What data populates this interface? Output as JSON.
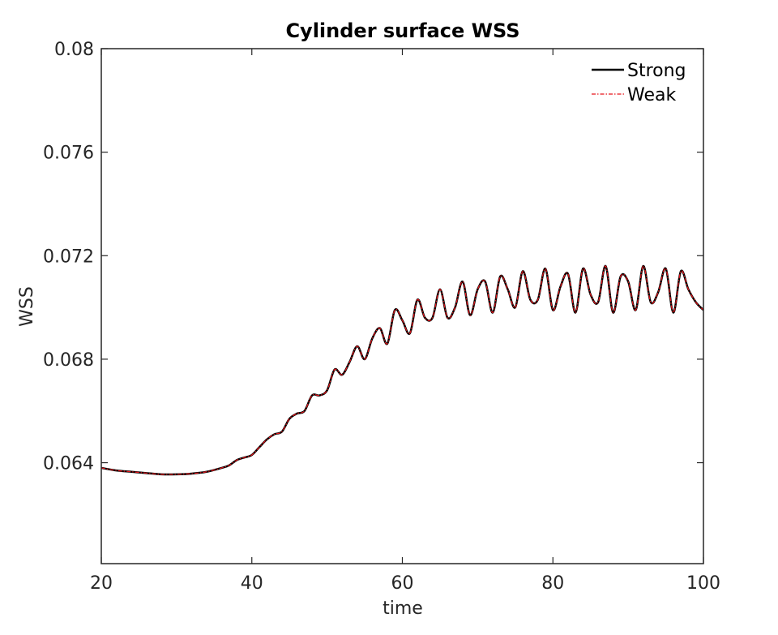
{
  "chart_data": {
    "type": "line",
    "title": "Cylinder surface WSS",
    "xlabel": "time",
    "ylabel": "WSS",
    "xlim": [
      20,
      100
    ],
    "ylim": [
      0.0601,
      0.08
    ],
    "xticks": [
      20,
      40,
      60,
      80,
      100
    ],
    "xtick_labels": [
      "20",
      "40",
      "60",
      "80",
      "100"
    ],
    "yticks": [
      0.064,
      0.068,
      0.072,
      0.076,
      0.08
    ],
    "ytick_labels": [
      "0.064",
      "0.068",
      "0.072",
      "0.076",
      "0.08"
    ],
    "grid": false,
    "legend_position": "top-right",
    "series": [
      {
        "name": "Strong",
        "color": "#000000",
        "style": "solid",
        "x": [
          20,
          22,
          24,
          26,
          28,
          30,
          32,
          34,
          36,
          37,
          38,
          39,
          40,
          41,
          42,
          43,
          44,
          45,
          46,
          47,
          48,
          49,
          50,
          51,
          52,
          53,
          54,
          55,
          56,
          57,
          58,
          59,
          60,
          61,
          62,
          63,
          64,
          65,
          66,
          67,
          68,
          69,
          70,
          71,
          72,
          73,
          74,
          75,
          76,
          77,
          78,
          79,
          80,
          81,
          82,
          83,
          84,
          85,
          86,
          87,
          88,
          89,
          90,
          91,
          92,
          93,
          94,
          95,
          96,
          97,
          98,
          99,
          100
        ],
        "y": [
          0.0638,
          0.0637,
          0.06365,
          0.0636,
          0.06355,
          0.06355,
          0.06358,
          0.06365,
          0.0638,
          0.0639,
          0.0641,
          0.0642,
          0.0643,
          0.0646,
          0.0649,
          0.0651,
          0.0652,
          0.0657,
          0.0659,
          0.066,
          0.0666,
          0.0666,
          0.0668,
          0.0676,
          0.0674,
          0.0679,
          0.0685,
          0.068,
          0.0688,
          0.0692,
          0.0686,
          0.0699,
          0.0695,
          0.069,
          0.0703,
          0.0696,
          0.0696,
          0.0707,
          0.0696,
          0.07,
          0.071,
          0.0697,
          0.0707,
          0.071,
          0.0698,
          0.0712,
          0.0707,
          0.07,
          0.0714,
          0.0703,
          0.0703,
          0.0715,
          0.0699,
          0.0708,
          0.0713,
          0.0698,
          0.0715,
          0.0705,
          0.0702,
          0.0716,
          0.0698,
          0.0712,
          0.071,
          0.0699,
          0.0716,
          0.0702,
          0.0706,
          0.0715,
          0.0698,
          0.0714,
          0.0707,
          0.0702,
          0.0699
        ]
      },
      {
        "name": "Weak",
        "color": "#e8141a",
        "style": "dash-dot",
        "x": [
          20,
          22,
          24,
          26,
          28,
          30,
          32,
          34,
          36,
          37,
          38,
          39,
          40,
          41,
          42,
          43,
          44,
          45,
          46,
          47,
          48,
          49,
          50,
          51,
          52,
          53,
          54,
          55,
          56,
          57,
          58,
          59,
          60,
          61,
          62,
          63,
          64,
          65,
          66,
          67,
          68,
          69,
          70,
          71,
          72,
          73,
          74,
          75,
          76,
          77,
          78,
          79,
          80,
          81,
          82,
          83,
          84,
          85,
          86,
          87,
          88,
          89,
          90,
          91,
          92,
          93,
          94,
          95,
          96,
          97,
          98,
          99,
          100
        ],
        "y": [
          0.0638,
          0.0637,
          0.06365,
          0.0636,
          0.06355,
          0.06355,
          0.06358,
          0.06365,
          0.0638,
          0.0639,
          0.0641,
          0.0642,
          0.0643,
          0.0646,
          0.0649,
          0.0651,
          0.0652,
          0.0657,
          0.0659,
          0.066,
          0.0666,
          0.0666,
          0.0668,
          0.0676,
          0.0674,
          0.0679,
          0.0685,
          0.068,
          0.0688,
          0.0692,
          0.0686,
          0.0699,
          0.0695,
          0.069,
          0.0703,
          0.0696,
          0.0696,
          0.0707,
          0.0696,
          0.07,
          0.071,
          0.0697,
          0.0707,
          0.071,
          0.0698,
          0.0712,
          0.0707,
          0.07,
          0.0714,
          0.0703,
          0.0703,
          0.0715,
          0.0699,
          0.0708,
          0.0713,
          0.0698,
          0.0715,
          0.0705,
          0.0702,
          0.0716,
          0.0698,
          0.0712,
          0.071,
          0.0699,
          0.0716,
          0.0702,
          0.0706,
          0.0715,
          0.0698,
          0.0714,
          0.0707,
          0.0702,
          0.0699
        ]
      }
    ]
  }
}
